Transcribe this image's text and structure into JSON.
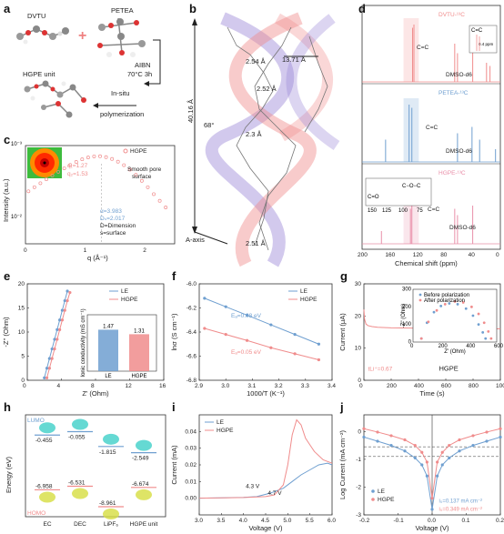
{
  "panels": {
    "a": {
      "letter": "a",
      "labels": {
        "dvtu": "DVTU",
        "petea": "PETEA",
        "hgpe_unit": "HGPE unit",
        "aibn": "AIBN",
        "cond": "70°C 3h",
        "insitu1": "In-situ",
        "insitu2": "polymerization"
      }
    },
    "b": {
      "letter": "b",
      "labels": {
        "len": "40.16 Å",
        "w": "13.71 Å",
        "d1": "2.54 Å",
        "d2": "2.52 Å",
        "d3": "2.3 Å",
        "d4": "2.51 Å",
        "ang": "68°",
        "axis": "A-axis"
      }
    },
    "c": {
      "letter": "c"
    },
    "d": {
      "letter": "d"
    },
    "e": {
      "letter": "e"
    },
    "f": {
      "letter": "f"
    },
    "g": {
      "letter": "g"
    },
    "h": {
      "letter": "h",
      "lumo": "LUMO",
      "homo": "HOMO",
      "ylabel": "Energy (eV)",
      "lumo_vals": [
        "-0.455",
        "-0.055",
        "-1.815",
        "-2.549"
      ],
      "homo_vals": [
        "-6.958",
        "-6.531",
        "-8.961",
        "-6.674"
      ],
      "mols": [
        "EC",
        "DEC",
        "LiPF₆",
        "HGPE unit"
      ]
    },
    "i": {
      "letter": "i"
    },
    "j": {
      "letter": "j"
    }
  },
  "colors": {
    "blue": "#6f9fd0",
    "red": "#f08c8c",
    "pink": "#e98fa9",
    "purple": "#9c87d8"
  },
  "chart_data": [
    {
      "id": "c",
      "type": "line",
      "title": "",
      "xlabel": "q (Å⁻¹)",
      "ylabel": "Intensity (a.u.)",
      "ylog": true,
      "xlim": [
        0,
        2.5
      ],
      "ylim_exp": [
        -3,
        -1.6
      ],
      "legend": [
        "HGPE"
      ],
      "legend_position": "top-right",
      "annotations": {
        "q1": "q₁=1.27",
        "q2": "q₂=1.53",
        "smooth1": "Smooth pore",
        "smooth2": "surface",
        "alpha": "α=3.983",
        "ds": "Dₛ=2.017",
        "dn": "D=Dimension",
        "sn": "s=surface",
        "scale": "10⁻²",
        "scale_top": "10⁻³"
      },
      "x": [
        0.05,
        0.15,
        0.25,
        0.35,
        0.45,
        0.55,
        0.65,
        0.75,
        0.85,
        0.95,
        1.05,
        1.15,
        1.25,
        1.35,
        1.45,
        1.55,
        1.65,
        1.75,
        1.85,
        1.95,
        2.05,
        2.15,
        2.25,
        2.35
      ],
      "y": [
        0.0056,
        0.0064,
        0.0073,
        0.0083,
        0.0094,
        0.0106,
        0.0119,
        0.0133,
        0.0147,
        0.016,
        0.017,
        0.0176,
        0.0177,
        0.0172,
        0.0162,
        0.0148,
        0.0132,
        0.0114,
        0.0096,
        0.0079,
        0.0064,
        0.0051,
        0.0041,
        0.0033
      ],
      "xticks": [
        0,
        1,
        2
      ]
    },
    {
      "id": "d",
      "type": "line",
      "xlabel": "Chemical shift (ppm)",
      "xlim": [
        200,
        0
      ],
      "xticks": [
        200,
        160,
        120,
        80,
        40,
        0
      ],
      "spectra": [
        {
          "name": "DVTU-¹³C",
          "color": "#f08c8c",
          "peaks": [
            [
              127,
              0.85
            ],
            [
              125,
              0.9
            ],
            [
              66,
              0.6
            ],
            [
              62,
              0.45
            ],
            [
              40,
              0.5
            ],
            [
              20,
              0.3
            ],
            [
              15,
              0.25
            ]
          ],
          "labels": {
            "cc": "C=C",
            "solvent": "DMSO-d6",
            "inset_cc": "C=C",
            "inset_shift": "0.4 ppm"
          }
        },
        {
          "name": "PETEA-¹³C",
          "color": "#6f9fd0",
          "peaks": [
            [
              166,
              0.35
            ],
            [
              132,
              0.9
            ],
            [
              128,
              0.85
            ],
            [
              62,
              0.45
            ],
            [
              41,
              0.55
            ],
            [
              30,
              0.35
            ],
            [
              7,
              0.2
            ]
          ],
          "labels": {
            "cc": "C=C",
            "solvent": "DMSO-d6"
          }
        },
        {
          "name": "HGPE-¹³C",
          "color": "#e98fa9",
          "peaks": [
            [
              172,
              0.2
            ],
            [
              130,
              0.55
            ],
            [
              128,
              0.6
            ],
            [
              66,
              0.55
            ],
            [
              62,
              0.45
            ],
            [
              40,
              0.6
            ]
          ],
          "labels": {
            "cc": "C=C",
            "coc": "C−O−C",
            "co": "C=O",
            "solvent": "DMSO-d6",
            "inset_ticks": [
              "150",
              "125",
              "100",
              "75"
            ]
          }
        }
      ]
    },
    {
      "id": "e",
      "type": "line",
      "xlabel": "Z' (Ohm)",
      "ylabel": "-Z'' (Ohm)",
      "xlim": [
        0,
        16
      ],
      "ylim": [
        0,
        20
      ],
      "xticks": [
        0,
        4,
        8,
        12,
        16
      ],
      "yticks": [
        0,
        5,
        10,
        15,
        20
      ],
      "legend_position": "top-right",
      "series": [
        {
          "name": "LE",
          "color": "#6f9fd0",
          "x": [
            2.0,
            2.3,
            2.6,
            2.9,
            3.2,
            3.5,
            3.8,
            4.1,
            4.4,
            4.7
          ],
          "y": [
            0.5,
            2.5,
            4.5,
            6.5,
            8.5,
            10.5,
            12.5,
            14.5,
            16.5,
            18.5
          ]
        },
        {
          "name": "HGPE",
          "color": "#f08c8c",
          "x": [
            2.3,
            2.6,
            2.9,
            3.2,
            3.5,
            3.8,
            4.1,
            4.4,
            4.7,
            5.0
          ],
          "y": [
            0.5,
            2.5,
            4.5,
            6.5,
            8.5,
            10.5,
            12.5,
            14.5,
            16.5,
            18.2
          ]
        }
      ],
      "inset": {
        "type": "bar",
        "ylabel": "Ionic conductivity (mS cm⁻¹)",
        "categories": [
          "LE",
          "HGPE"
        ],
        "values": [
          1.47,
          1.31
        ],
        "value_labels": [
          "1.47",
          "1.31"
        ],
        "ylim": [
          0,
          2
        ]
      }
    },
    {
      "id": "f",
      "type": "scatter",
      "xlabel": "1000/T (K⁻¹)",
      "ylabel": "lnσ (S cm⁻¹)",
      "xlim": [
        2.9,
        3.4
      ],
      "ylim": [
        -6.8,
        -6.0
      ],
      "xticks": [
        2.9,
        3.0,
        3.1,
        3.2,
        3.3,
        3.4
      ],
      "yticks": [
        -6.0,
        -6.2,
        -6.4,
        -6.6,
        -6.8
      ],
      "legend_position": "top-right",
      "series": [
        {
          "name": "LE",
          "color": "#6f9fd0",
          "x": [
            2.92,
            3.0,
            3.08,
            3.17,
            3.26,
            3.35
          ],
          "y": [
            -6.12,
            -6.19,
            -6.26,
            -6.34,
            -6.42,
            -6.5
          ],
          "ea": "Eₐ=0.08 eV"
        },
        {
          "name": "HGPE",
          "color": "#f08c8c",
          "x": [
            2.92,
            3.0,
            3.08,
            3.17,
            3.26,
            3.35
          ],
          "y": [
            -6.37,
            -6.42,
            -6.47,
            -6.53,
            -6.58,
            -6.63
          ],
          "ea": "Eₐ=0.05 eV"
        }
      ]
    },
    {
      "id": "g",
      "type": "line",
      "xlabel": "Time (s)",
      "ylabel": "Current (μA)",
      "xlim": [
        0,
        1000
      ],
      "ylim": [
        0,
        30
      ],
      "xticks": [
        0,
        200,
        400,
        600,
        800,
        1000
      ],
      "yticks": [
        0,
        10,
        20,
        30
      ],
      "label": "HGPE",
      "tli": "tLi⁺=0.67",
      "series": [
        {
          "name": "HGPE",
          "color": "#f08c8c",
          "x": [
            0,
            5,
            15,
            30,
            60,
            100,
            200,
            400,
            600,
            800,
            1000
          ],
          "y": [
            22,
            19,
            17.5,
            17,
            16.7,
            16.5,
            16.3,
            16.2,
            16.1,
            16.1,
            16.0
          ]
        }
      ],
      "inset": {
        "xlabel": "Z' (Ohm)",
        "ylabel": "-Z'' (Ohm)",
        "xlim": [
          0,
          600
        ],
        "ylim": [
          0,
          300
        ],
        "xticks": [
          0,
          200,
          400,
          600
        ],
        "yticks": [
          0,
          100,
          200,
          300
        ],
        "series": [
          {
            "name": "Before polarization",
            "color": "#6f9fd0",
            "x": [
              60,
              100,
              150,
              200,
              260,
              320,
              380,
              430,
              470,
              500,
              520
            ],
            "y": [
              20,
              110,
              170,
              205,
              220,
              215,
              190,
              150,
              100,
              55,
              20
            ]
          },
          {
            "name": "After polarization",
            "color": "#f08c8c",
            "x": [
              60,
              110,
              170,
              230,
              300,
              360,
              420,
              470,
              510,
              540,
              560
            ],
            "y": [
              20,
              115,
              180,
              215,
              230,
              225,
              200,
              160,
              110,
              60,
              20
            ]
          }
        ]
      }
    },
    {
      "id": "i",
      "type": "line",
      "xlabel": "Voltage (V)",
      "ylabel": "Current (mA)",
      "xlim": [
        3.0,
        6.0
      ],
      "ylim": [
        -0.01,
        0.05
      ],
      "xticks": [
        3.0,
        3.5,
        4.0,
        4.5,
        5.0,
        5.5,
        6.0
      ],
      "yticks": [
        0.0,
        0.01,
        0.02,
        0.03,
        0.04
      ],
      "legend_position": "top-left",
      "annotations": {
        "v1": "4.3 V",
        "v2": "4.7 V"
      },
      "series": [
        {
          "name": "LE",
          "color": "#6f9fd0",
          "x": [
            3.0,
            3.5,
            4.0,
            4.3,
            4.6,
            4.9,
            5.1,
            5.3,
            5.5,
            5.7,
            5.9,
            6.0
          ],
          "y": [
            0.0,
            0.0002,
            0.0005,
            0.001,
            0.003,
            0.006,
            0.01,
            0.014,
            0.017,
            0.02,
            0.021,
            0.02
          ]
        },
        {
          "name": "HGPE",
          "color": "#f08c8c",
          "x": [
            3.0,
            3.5,
            4.0,
            4.5,
            4.7,
            4.9,
            5.0,
            5.1,
            5.2,
            5.3,
            5.4,
            5.5,
            5.6,
            5.8,
            6.0
          ],
          "y": [
            0.0,
            0.0002,
            0.0004,
            0.001,
            0.002,
            0.008,
            0.02,
            0.038,
            0.047,
            0.044,
            0.036,
            0.032,
            0.028,
            0.023,
            0.021
          ]
        }
      ]
    },
    {
      "id": "j",
      "type": "line",
      "xlabel": "Voltage (V)",
      "ylabel": "Log Current (mA cm⁻²)",
      "xlim": [
        -0.2,
        0.2
      ],
      "ylim": [
        -3,
        0.6
      ],
      "xticks": [
        -0.2,
        -0.1,
        0.0,
        0.1,
        0.2
      ],
      "yticks": [
        0,
        -1,
        -2,
        -3
      ],
      "legend_position": "bottom-left",
      "annotations": {
        "i1": "i₀=0.137 mA cm⁻²",
        "i2": "i₀=0.349 mA cm⁻²"
      },
      "series": [
        {
          "name": "LE",
          "color": "#6f9fd0",
          "x": [
            -0.2,
            -0.16,
            -0.12,
            -0.08,
            -0.05,
            -0.03,
            -0.015,
            0,
            0.015,
            0.03,
            0.05,
            0.08,
            0.12,
            0.16,
            0.2
          ],
          "y": [
            -0.2,
            -0.35,
            -0.5,
            -0.7,
            -0.95,
            -1.2,
            -1.6,
            -2.8,
            -1.6,
            -1.2,
            -0.95,
            -0.7,
            -0.5,
            -0.35,
            -0.2
          ]
        },
        {
          "name": "HGPE",
          "color": "#f08c8c",
          "x": [
            -0.2,
            -0.16,
            -0.12,
            -0.08,
            -0.05,
            -0.03,
            -0.015,
            0,
            0.015,
            0.03,
            0.05,
            0.08,
            0.12,
            0.16,
            0.2
          ],
          "y": [
            0.1,
            -0.02,
            -0.15,
            -0.3,
            -0.5,
            -0.75,
            -1.1,
            -2.4,
            -1.1,
            -0.75,
            -0.5,
            -0.3,
            -0.15,
            -0.02,
            0.1
          ]
        }
      ]
    }
  ]
}
